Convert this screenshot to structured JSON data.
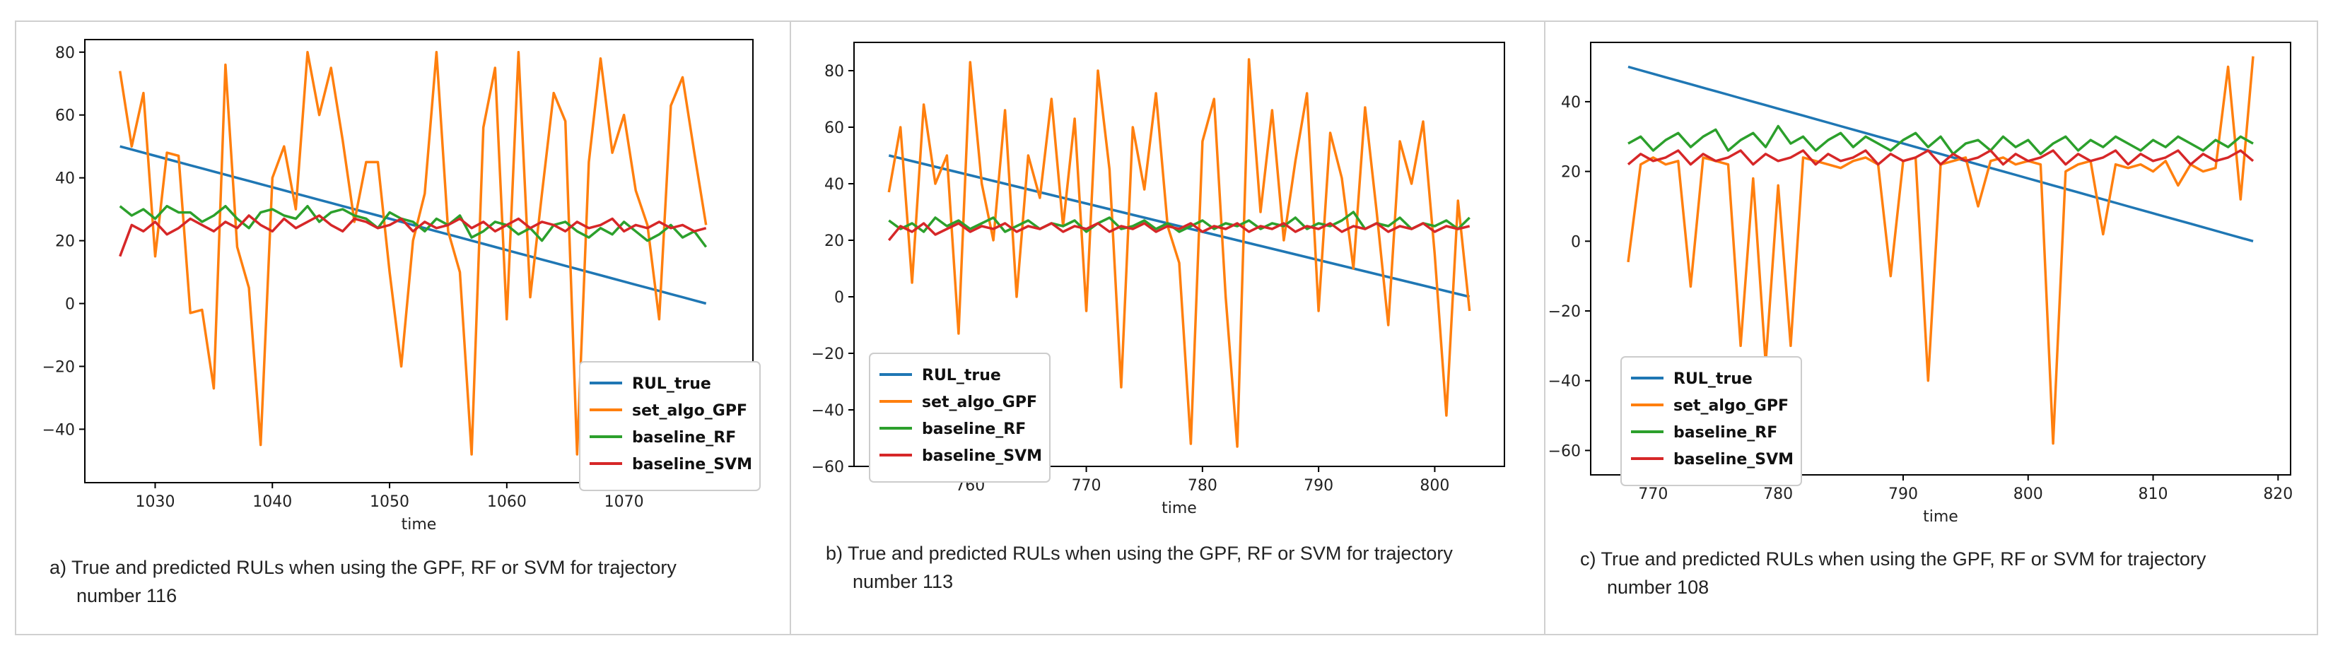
{
  "chart_data": [
    {
      "type": "line",
      "caption_prefix": "a)",
      "caption_lines": [
        "True and predicted RULs when using the GPF, RF or SVM for trajectory",
        "number 116"
      ],
      "xlabel": "time",
      "ylabel": "",
      "xlim": [
        1024,
        1081
      ],
      "ylim": [
        -57,
        84
      ],
      "xticks": [
        1030,
        1040,
        1050,
        1060,
        1070
      ],
      "yticks": [
        80,
        60,
        40,
        20,
        0,
        -20,
        -40
      ],
      "legend_position": "lower-right",
      "x_start": 1027,
      "x_end": 1077,
      "series": [
        {
          "name": "RUL_true",
          "color": "#1f77b4",
          "values": [
            50,
            49,
            48,
            47,
            46,
            45,
            44,
            43,
            42,
            41,
            40,
            39,
            38,
            37,
            36,
            35,
            34,
            33,
            32,
            31,
            30,
            29,
            28,
            27,
            26,
            25,
            24,
            23,
            22,
            21,
            20,
            19,
            18,
            17,
            16,
            15,
            14,
            13,
            12,
            11,
            10,
            9,
            8,
            7,
            6,
            5,
            4,
            3,
            2,
            1,
            0
          ]
        },
        {
          "name": "set_algo_GPF",
          "color": "#ff7f0e",
          "values": [
            74,
            50,
            67,
            15,
            48,
            47,
            -3,
            -2,
            -27,
            76,
            18,
            5,
            -45,
            40,
            50,
            30,
            80,
            60,
            75,
            52,
            26,
            45,
            45,
            10,
            -20,
            20,
            35,
            80,
            23,
            10,
            -48,
            56,
            75,
            -5,
            80,
            2,
            35,
            67,
            58,
            -48,
            45,
            78,
            48,
            60,
            36,
            25,
            -5,
            63,
            72,
            48,
            25
          ]
        },
        {
          "name": "baseline_RF",
          "color": "#2ca02c",
          "values": [
            31,
            28,
            30,
            27,
            31,
            29,
            29,
            26,
            28,
            31,
            27,
            24,
            29,
            30,
            28,
            27,
            31,
            26,
            29,
            30,
            28,
            27,
            24,
            29,
            27,
            26,
            23,
            27,
            25,
            28,
            21,
            23,
            26,
            25,
            22,
            24,
            20,
            25,
            26,
            23,
            21,
            24,
            22,
            26,
            23,
            20,
            22,
            25,
            21,
            23,
            18
          ]
        },
        {
          "name": "baseline_SVM",
          "color": "#d62728",
          "values": [
            15,
            25,
            23,
            26,
            22,
            24,
            27,
            25,
            23,
            26,
            24,
            28,
            25,
            23,
            27,
            24,
            26,
            28,
            25,
            23,
            27,
            26,
            24,
            25,
            27,
            23,
            26,
            24,
            25,
            27,
            24,
            26,
            23,
            25,
            27,
            24,
            26,
            25,
            23,
            26,
            24,
            25,
            27,
            23,
            25,
            24,
            26,
            24,
            25,
            23,
            24
          ]
        }
      ]
    },
    {
      "type": "line",
      "caption_prefix": "b)",
      "caption_lines": [
        "True and predicted RULs when using the GPF, RF or SVM for trajectory",
        "number 113"
      ],
      "xlabel": "time",
      "ylabel": "",
      "xlim": [
        750,
        806
      ],
      "ylim": [
        -60,
        90
      ],
      "xticks": [
        760,
        770,
        780,
        790,
        800
      ],
      "yticks": [
        80,
        60,
        40,
        20,
        0,
        -20,
        -40,
        -60
      ],
      "legend_position": "lower-left",
      "x_start": 753,
      "x_end": 803,
      "series": [
        {
          "name": "RUL_true",
          "color": "#1f77b4",
          "values": [
            50,
            49,
            48,
            47,
            46,
            45,
            44,
            43,
            42,
            41,
            40,
            39,
            38,
            37,
            36,
            35,
            34,
            33,
            32,
            31,
            30,
            29,
            28,
            27,
            26,
            25,
            24,
            23,
            22,
            21,
            20,
            19,
            18,
            17,
            16,
            15,
            14,
            13,
            12,
            11,
            10,
            9,
            8,
            7,
            6,
            5,
            4,
            3,
            2,
            1,
            0
          ]
        },
        {
          "name": "set_algo_GPF",
          "color": "#ff7f0e",
          "values": [
            37,
            60,
            5,
            68,
            40,
            50,
            -13,
            83,
            40,
            20,
            66,
            0,
            50,
            35,
            70,
            25,
            63,
            -5,
            80,
            45,
            -32,
            60,
            38,
            72,
            25,
            12,
            -52,
            55,
            70,
            0,
            -53,
            84,
            30,
            66,
            20,
            48,
            72,
            -5,
            58,
            42,
            10,
            67,
            30,
            -10,
            55,
            40,
            62,
            15,
            -42,
            34,
            -5
          ]
        },
        {
          "name": "baseline_RF",
          "color": "#2ca02c",
          "values": [
            27,
            24,
            26,
            23,
            28,
            25,
            27,
            24,
            26,
            28,
            23,
            25,
            27,
            24,
            26,
            25,
            27,
            23,
            26,
            28,
            24,
            25,
            27,
            24,
            26,
            23,
            25,
            27,
            24,
            26,
            25,
            27,
            24,
            26,
            25,
            28,
            24,
            26,
            25,
            27,
            30,
            24,
            26,
            25,
            28,
            24,
            26,
            25,
            27,
            24,
            28
          ]
        },
        {
          "name": "baseline_SVM",
          "color": "#d62728",
          "values": [
            20,
            25,
            23,
            26,
            22,
            24,
            26,
            23,
            25,
            24,
            26,
            23,
            25,
            24,
            26,
            23,
            25,
            24,
            26,
            23,
            25,
            24,
            26,
            23,
            25,
            24,
            26,
            23,
            25,
            24,
            26,
            23,
            25,
            24,
            26,
            23,
            25,
            24,
            26,
            23,
            25,
            24,
            26,
            23,
            25,
            24,
            26,
            23,
            25,
            24,
            25
          ]
        }
      ]
    },
    {
      "type": "line",
      "caption_prefix": "c)",
      "caption_lines": [
        "True and predicted RULs when using the GPF, RF or SVM for trajectory",
        "number 108"
      ],
      "xlabel": "time",
      "ylabel": "",
      "xlim": [
        765,
        821
      ],
      "ylim": [
        -67,
        57
      ],
      "xticks": [
        770,
        780,
        790,
        800,
        810,
        820
      ],
      "yticks": [
        40,
        20,
        0,
        -20,
        -40,
        -60
      ],
      "legend_position": "lower-left",
      "x_start": 768,
      "x_end": 818,
      "series": [
        {
          "name": "RUL_true",
          "color": "#1f77b4",
          "values": [
            50,
            49,
            48,
            47,
            46,
            45,
            44,
            43,
            42,
            41,
            40,
            39,
            38,
            37,
            36,
            35,
            34,
            33,
            32,
            31,
            30,
            29,
            28,
            27,
            26,
            25,
            24,
            23,
            22,
            21,
            20,
            19,
            18,
            17,
            16,
            15,
            14,
            13,
            12,
            11,
            10,
            9,
            8,
            7,
            6,
            5,
            4,
            3,
            2,
            1,
            0
          ]
        },
        {
          "name": "set_algo_GPF",
          "color": "#ff7f0e",
          "values": [
            -6,
            22,
            24,
            22,
            23,
            -13,
            24,
            23,
            22,
            -30,
            18,
            -35,
            16,
            -30,
            24,
            23,
            22,
            21,
            23,
            24,
            22,
            -10,
            23,
            24,
            -40,
            22,
            23,
            24,
            10,
            23,
            24,
            22,
            23,
            22,
            -58,
            20,
            22,
            23,
            2,
            22,
            21,
            22,
            20,
            23,
            16,
            22,
            20,
            21,
            50,
            12,
            53
          ]
        },
        {
          "name": "baseline_RF",
          "color": "#2ca02c",
          "values": [
            28,
            30,
            26,
            29,
            31,
            27,
            30,
            32,
            26,
            29,
            31,
            27,
            33,
            28,
            30,
            26,
            29,
            31,
            27,
            30,
            28,
            26,
            29,
            31,
            27,
            30,
            25,
            28,
            29,
            26,
            30,
            27,
            29,
            25,
            28,
            30,
            26,
            29,
            27,
            30,
            28,
            26,
            29,
            27,
            30,
            28,
            26,
            29,
            27,
            30,
            28
          ]
        },
        {
          "name": "baseline_SVM",
          "color": "#d62728",
          "values": [
            22,
            25,
            23,
            24,
            26,
            22,
            25,
            23,
            24,
            26,
            22,
            25,
            23,
            24,
            26,
            22,
            25,
            23,
            24,
            26,
            22,
            25,
            23,
            24,
            26,
            22,
            25,
            23,
            24,
            26,
            22,
            25,
            23,
            24,
            26,
            22,
            25,
            23,
            24,
            26,
            22,
            25,
            23,
            24,
            26,
            22,
            25,
            23,
            24,
            26,
            23
          ]
        }
      ]
    }
  ]
}
